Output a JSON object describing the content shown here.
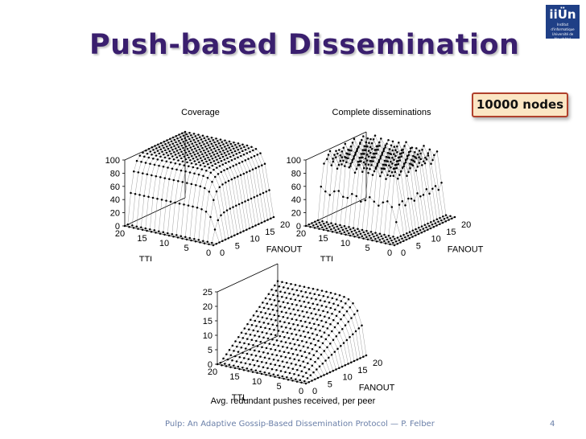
{
  "slide": {
    "title": "Push-based Dissemination",
    "badge": "10000 nodes",
    "footer": "Pulp: An Adaptive Gossip-Based Dissemination Protocol — P. Felber",
    "page_number": "4",
    "logo": {
      "mark": "iiÜn",
      "line1": "Institut d'informatique",
      "line2": "Université de Neuchâtel"
    }
  },
  "chart_data": [
    {
      "id": "coverage",
      "type": "surface3d",
      "title": "Coverage",
      "xlabel": "TTL",
      "ylabel": "FANOUT",
      "x_ticks": [
        20,
        15,
        10,
        5,
        0
      ],
      "y_ticks": [
        0,
        5,
        10,
        15,
        20
      ],
      "z_ticks": [
        0,
        20,
        40,
        60,
        80,
        100
      ],
      "x_range": [
        0,
        20
      ],
      "y_range": [
        0,
        20
      ],
      "zlim": [
        0,
        100
      ],
      "grid_resolution": [
        21,
        21
      ],
      "surface": "0 when TTL=0 or FANOUT<=1; rises steeply and saturates at 100 for TTL>=4 and FANOUT>=4"
    },
    {
      "id": "complete",
      "type": "surface3d",
      "title": "Complete disseminations",
      "xlabel": "TTL",
      "ylabel": "FANOUT",
      "x_ticks": [
        20,
        15,
        10,
        5,
        0
      ],
      "y_ticks": [
        0,
        5,
        10,
        15,
        20
      ],
      "z_ticks": [
        0,
        20,
        40,
        60,
        80,
        100
      ],
      "x_range": [
        0,
        20
      ],
      "y_range": [
        0,
        20
      ],
      "zlim": [
        0,
        100
      ],
      "grid_resolution": [
        21,
        21
      ],
      "surface": "0 for TTL<=2 or FANOUT<=4; jumps to about 85-100 with noise once TTL>=4 and FANOUT>=6"
    },
    {
      "id": "redundant",
      "type": "surface3d",
      "title": "Avg. redundant pushes received, per peer",
      "xlabel": "TTL",
      "ylabel": "FANOUT",
      "x_ticks": [
        20,
        15,
        10,
        5,
        0
      ],
      "y_ticks": [
        0,
        5,
        10,
        15,
        20
      ],
      "z_ticks": [
        0,
        5,
        10,
        15,
        20,
        25
      ],
      "x_range": [
        0,
        20
      ],
      "y_range": [
        0,
        20
      ],
      "zlim": [
        0,
        25
      ],
      "grid_resolution": [
        21,
        21
      ],
      "surface": "roughly FANOUT - 1 once TTL>=3, reaching about 19 at FANOUT=20; near 0 for small TTL"
    }
  ]
}
